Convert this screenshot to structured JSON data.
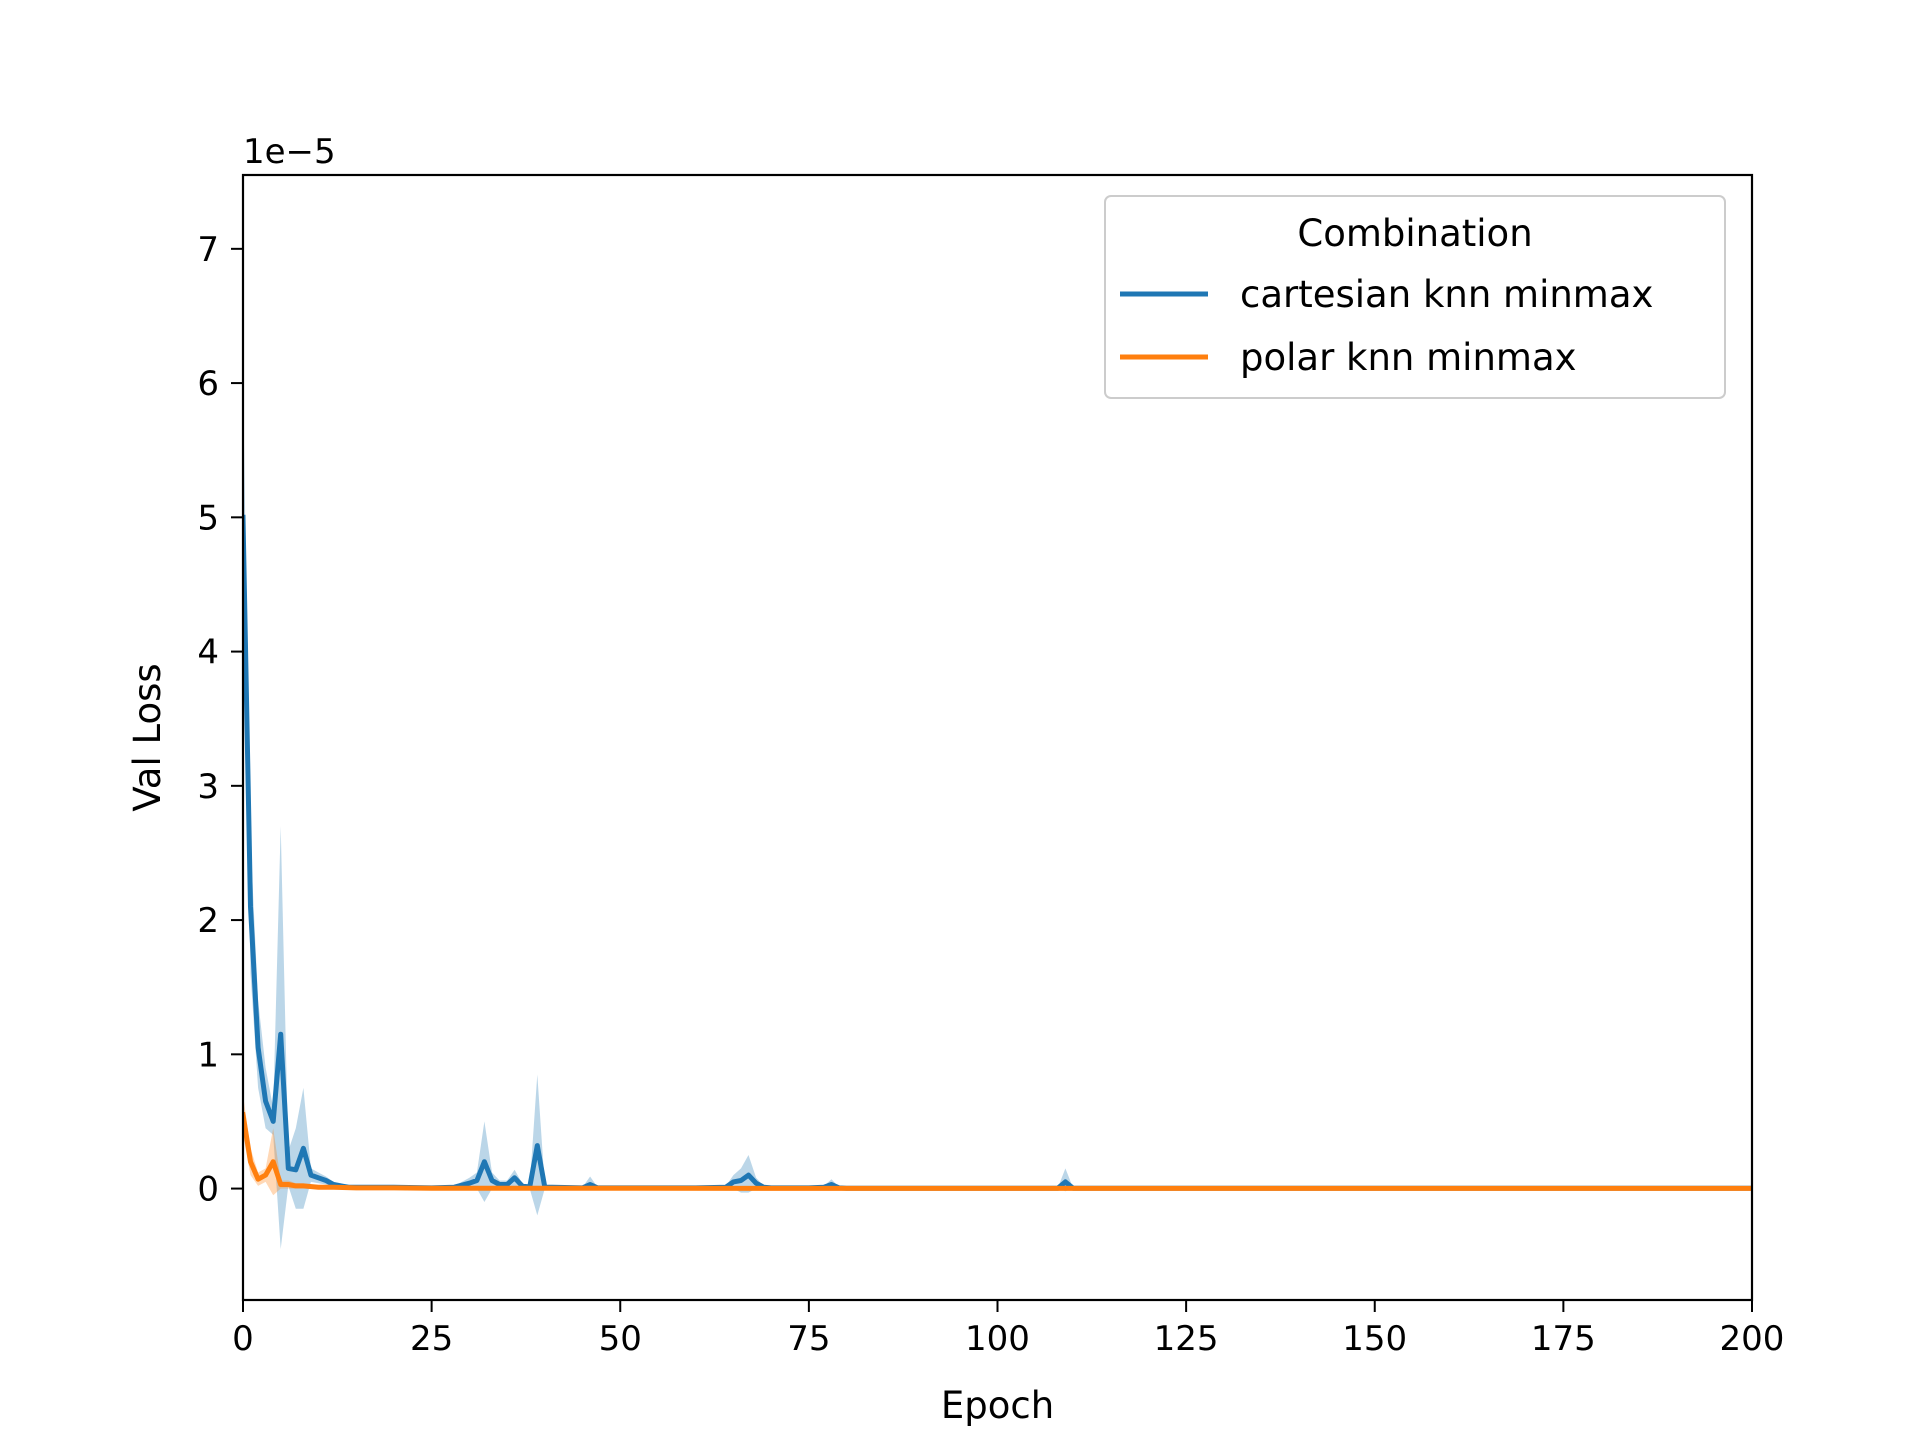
{
  "chart_data": {
    "type": "line",
    "xlabel": "Epoch",
    "ylabel": "Val Loss",
    "y_offset_label": "1e−5",
    "xlim": [
      0,
      200
    ],
    "ylim": [
      -0.83,
      7.55
    ],
    "x_ticks": [
      0,
      25,
      50,
      75,
      100,
      125,
      150,
      175,
      200
    ],
    "y_ticks": [
      0,
      1,
      2,
      3,
      4,
      5,
      6,
      7
    ],
    "x_tick_labels": [
      "0",
      "25",
      "50",
      "75",
      "100",
      "125",
      "150",
      "175",
      "200"
    ],
    "y_tick_labels": [
      "0",
      "1",
      "2",
      "3",
      "4",
      "5",
      "6",
      "7"
    ],
    "grid": false,
    "legend": {
      "title": "Combination",
      "placement": "top-right"
    },
    "series": [
      {
        "name": "cartesian knn minmax",
        "color": "#1f77b4",
        "band_color": "#1f77b4",
        "x": [
          0,
          1,
          2,
          3,
          4,
          5,
          6,
          7,
          8,
          9,
          10,
          11,
          12,
          13,
          14,
          15,
          20,
          25,
          28,
          30,
          31,
          32,
          33,
          34,
          35,
          36,
          37,
          38,
          39,
          40,
          41,
          45,
          46,
          47,
          50,
          60,
          64,
          65,
          66,
          67,
          68,
          69,
          70,
          75,
          77,
          78,
          79,
          80,
          100,
          108,
          109,
          110,
          150,
          200
        ],
        "y": [
          5.0,
          2.1,
          1.05,
          0.65,
          0.5,
          1.15,
          0.15,
          0.14,
          0.3,
          0.1,
          0.08,
          0.06,
          0.03,
          0.02,
          0.01,
          0.01,
          0.01,
          0.005,
          0.01,
          0.04,
          0.06,
          0.2,
          0.06,
          0.03,
          0.03,
          0.08,
          0.02,
          0.01,
          0.32,
          0.01,
          0.01,
          0.005,
          0.03,
          0.005,
          0.005,
          0.005,
          0.01,
          0.05,
          0.06,
          0.1,
          0.04,
          0.01,
          0.005,
          0.005,
          0.01,
          0.03,
          0.005,
          0.003,
          0.003,
          0.003,
          0.05,
          0.003,
          0.002,
          0.002
        ],
        "lower": [
          4.5,
          1.6,
          0.75,
          0.45,
          0.4,
          -0.45,
          0.02,
          -0.15,
          -0.15,
          0.05,
          0.04,
          0.03,
          0.01,
          0.0,
          0.0,
          0.0,
          0.0,
          0.0,
          0.0,
          0.0,
          0.0,
          -0.1,
          0.0,
          0.0,
          0.0,
          0.0,
          0.0,
          0.0,
          -0.2,
          0.0,
          0.0,
          0.0,
          0.0,
          0.0,
          0.0,
          0.0,
          0.0,
          0.0,
          -0.03,
          -0.03,
          0.0,
          0.0,
          0.0,
          0.0,
          0.0,
          0.0,
          0.0,
          0.0,
          0.0,
          0.0,
          -0.02,
          0.0,
          0.0,
          0.0
        ],
        "upper": [
          6.0,
          2.6,
          1.4,
          0.9,
          0.6,
          2.7,
          0.28,
          0.45,
          0.75,
          0.15,
          0.12,
          0.09,
          0.05,
          0.04,
          0.02,
          0.02,
          0.02,
          0.01,
          0.02,
          0.08,
          0.12,
          0.5,
          0.12,
          0.06,
          0.06,
          0.14,
          0.04,
          0.02,
          0.85,
          0.02,
          0.02,
          0.01,
          0.09,
          0.01,
          0.01,
          0.01,
          0.02,
          0.1,
          0.15,
          0.25,
          0.08,
          0.02,
          0.01,
          0.01,
          0.02,
          0.07,
          0.01,
          0.006,
          0.006,
          0.006,
          0.15,
          0.006,
          0.004,
          0.004
        ]
      },
      {
        "name": "polar knn minmax",
        "color": "#ff7f0e",
        "band_color": "#ff7f0e",
        "x": [
          0,
          1,
          2,
          3,
          4,
          5,
          6,
          7,
          8,
          10,
          12,
          15,
          20,
          25,
          30,
          35,
          40,
          50,
          100,
          150,
          200
        ],
        "y": [
          0.55,
          0.2,
          0.07,
          0.1,
          0.2,
          0.03,
          0.03,
          0.02,
          0.02,
          0.01,
          0.01,
          0.005,
          0.005,
          0.003,
          0.003,
          0.003,
          0.002,
          0.002,
          0.001,
          0.001,
          0.001
        ],
        "lower": [
          0.4,
          0.1,
          0.02,
          0.05,
          -0.05,
          0.0,
          0.0,
          0.0,
          0.0,
          0.0,
          0.0,
          0.0,
          0.0,
          0.0,
          0.0,
          0.0,
          0.0,
          0.0,
          0.0,
          0.0,
          0.0
        ],
        "upper": [
          0.7,
          0.3,
          0.12,
          0.15,
          0.45,
          0.06,
          0.06,
          0.04,
          0.04,
          0.02,
          0.02,
          0.01,
          0.01,
          0.006,
          0.006,
          0.006,
          0.004,
          0.004,
          0.002,
          0.002,
          0.002
        ]
      }
    ]
  }
}
